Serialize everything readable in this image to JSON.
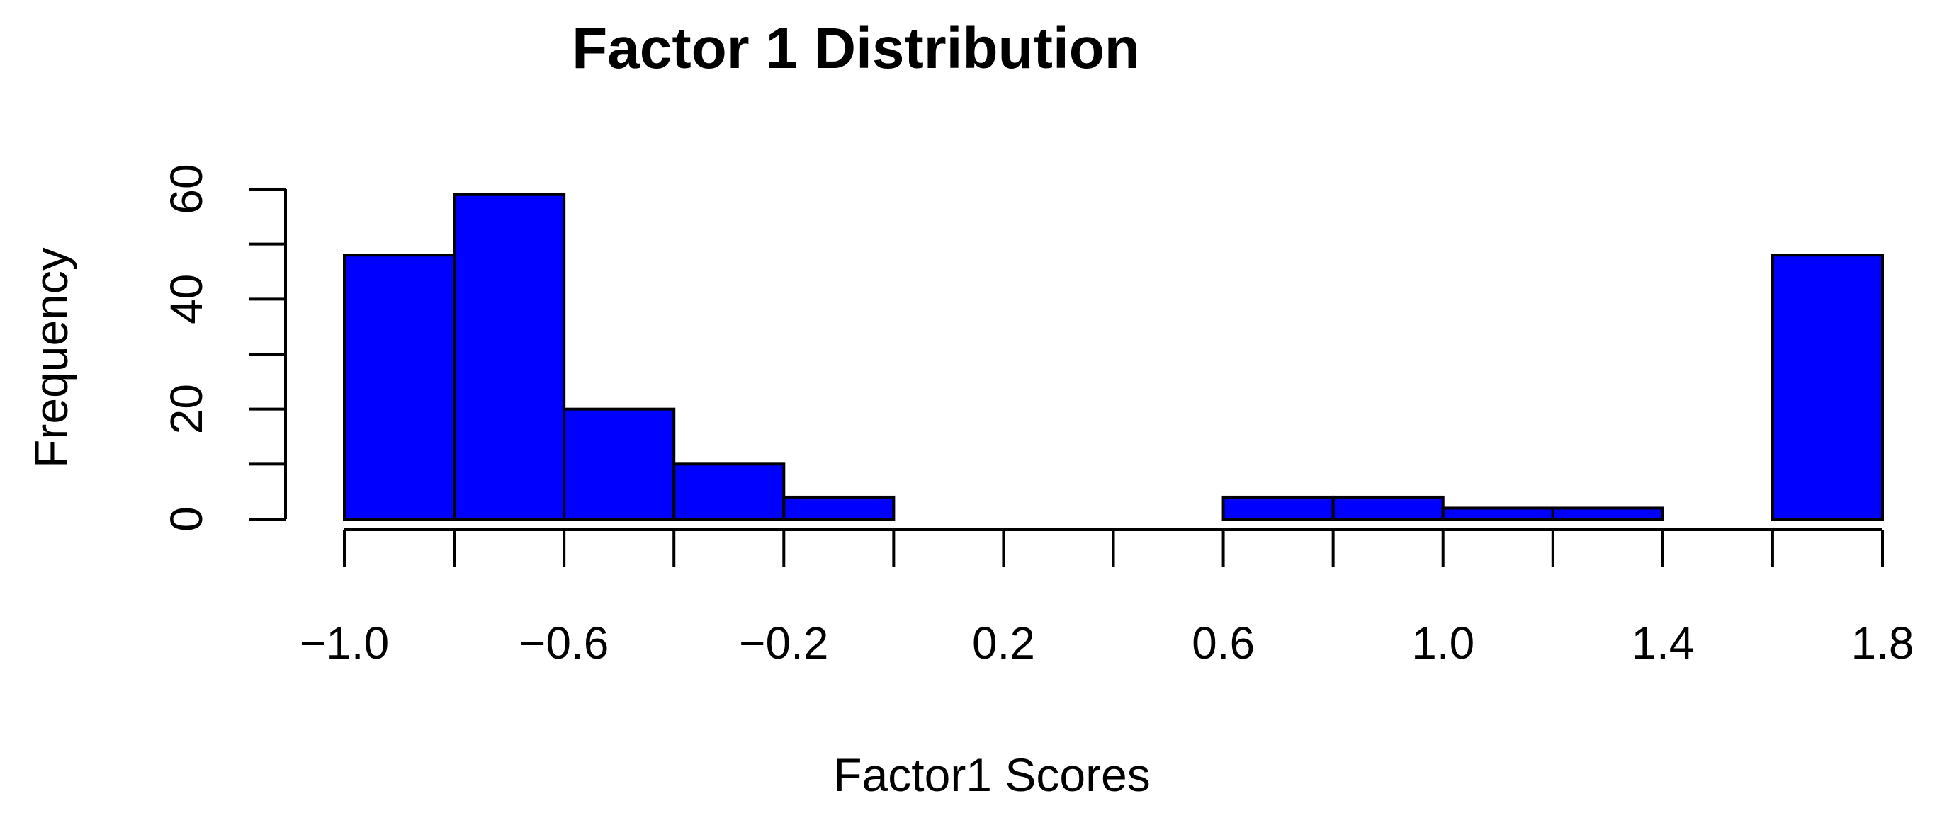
{
  "chart_data": {
    "type": "bar",
    "title": "Factor 1 Distribution",
    "xlabel": "Factor1 Scores",
    "ylabel": "Frequency",
    "bar_color": "#0000ff",
    "bins": [
      {
        "start": -1.0,
        "end": -0.8,
        "count": 48
      },
      {
        "start": -0.8,
        "end": -0.6,
        "count": 59
      },
      {
        "start": -0.6,
        "end": -0.4,
        "count": 20
      },
      {
        "start": -0.4,
        "end": -0.2,
        "count": 10
      },
      {
        "start": -0.2,
        "end": 0.0,
        "count": 4
      },
      {
        "start": 0.0,
        "end": 0.2,
        "count": 0
      },
      {
        "start": 0.2,
        "end": 0.4,
        "count": 0
      },
      {
        "start": 0.4,
        "end": 0.6,
        "count": 0
      },
      {
        "start": 0.6,
        "end": 0.8,
        "count": 4
      },
      {
        "start": 0.8,
        "end": 1.0,
        "count": 4
      },
      {
        "start": 1.0,
        "end": 1.2,
        "count": 2
      },
      {
        "start": 1.2,
        "end": 1.4,
        "count": 2
      },
      {
        "start": 1.4,
        "end": 1.6,
        "count": 0
      },
      {
        "start": 1.6,
        "end": 1.8,
        "count": 48
      }
    ],
    "x_ticks": [
      -1.0,
      -0.8,
      -0.6,
      -0.4,
      -0.2,
      0.0,
      0.2,
      0.4,
      0.6,
      0.8,
      1.0,
      1.2,
      1.4,
      1.6,
      1.8
    ],
    "x_tick_labels": [
      {
        "value": -1.0,
        "label": "−1.0"
      },
      {
        "value": -0.6,
        "label": "−0.6"
      },
      {
        "value": -0.2,
        "label": "−0.2"
      },
      {
        "value": 0.2,
        "label": "0.2"
      },
      {
        "value": 0.6,
        "label": "0.6"
      },
      {
        "value": 1.0,
        "label": "1.0"
      },
      {
        "value": 1.4,
        "label": "1.4"
      },
      {
        "value": 1.8,
        "label": "1.8"
      }
    ],
    "y_ticks": [
      0,
      10,
      20,
      30,
      40,
      50,
      60
    ],
    "y_tick_labels": [
      {
        "value": 0,
        "label": "0"
      },
      {
        "value": 20,
        "label": "20"
      },
      {
        "value": 40,
        "label": "40"
      },
      {
        "value": 60,
        "label": "60"
      }
    ],
    "xlim": [
      -1.0,
      1.8
    ],
    "ylim": [
      0,
      60
    ],
    "grid": false
  }
}
